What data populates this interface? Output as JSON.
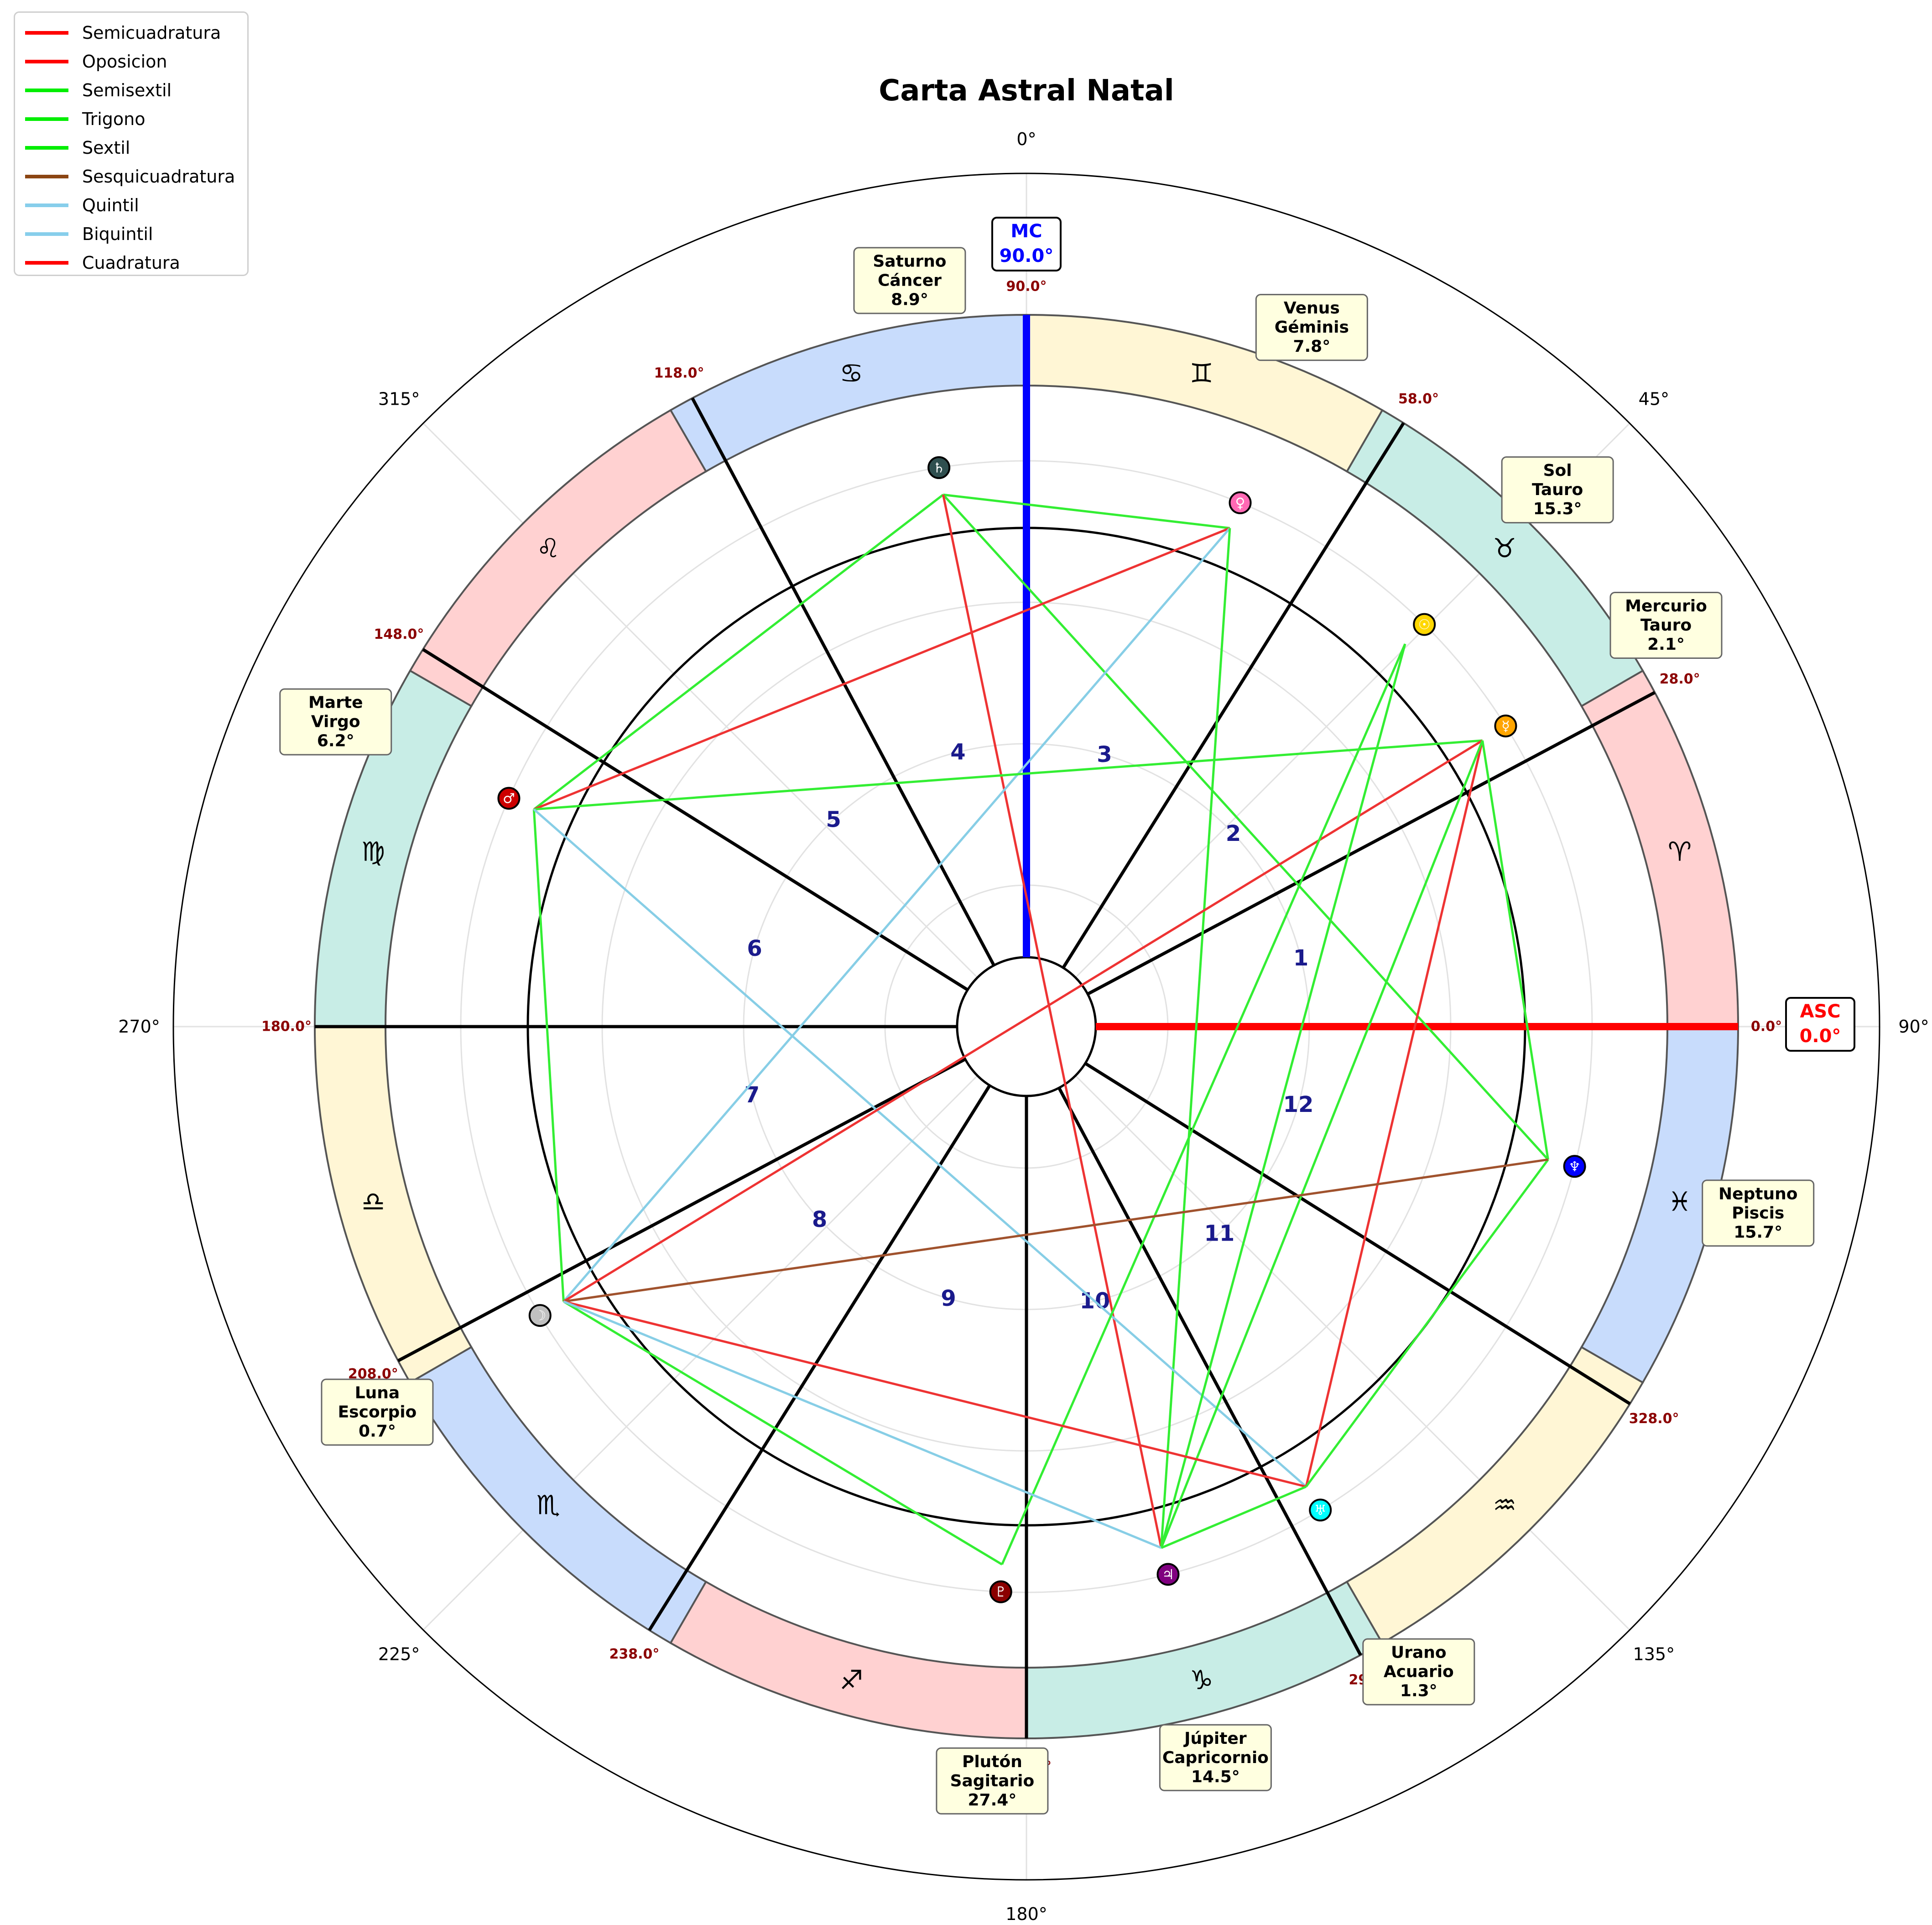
{
  "title": "Carta Astral Natal",
  "angle_labels": [
    "0°",
    "45°",
    "90°",
    "135°",
    "180°",
    "225°",
    "270°",
    "315°"
  ],
  "legend": [
    {
      "label": "Semicuadratura",
      "color": "#ff0000"
    },
    {
      "label": "Oposicion",
      "color": "#ff0000"
    },
    {
      "label": "Semisextil",
      "color": "#00ee00"
    },
    {
      "label": "Trigono",
      "color": "#00ee00"
    },
    {
      "label": "Sextil",
      "color": "#00ee00"
    },
    {
      "label": "Sesquicuadratura",
      "color": "#8b4513"
    },
    {
      "label": "Quintil",
      "color": "#87ceeb"
    },
    {
      "label": "Biquintil",
      "color": "#87ceeb"
    },
    {
      "label": "Cuadratura",
      "color": "#ff0000"
    }
  ],
  "signs": [
    {
      "glyph": "♈",
      "color": "#ffd1d1"
    },
    {
      "glyph": "♉",
      "color": "#c8ede6"
    },
    {
      "glyph": "♊",
      "color": "#fff6d5"
    },
    {
      "glyph": "♋",
      "color": "#c8dcfc"
    },
    {
      "glyph": "♌",
      "color": "#ffd1d1"
    },
    {
      "glyph": "♍",
      "color": "#c8ede6"
    },
    {
      "glyph": "♎",
      "color": "#fff6d5"
    },
    {
      "glyph": "♏",
      "color": "#c8dcfc"
    },
    {
      "glyph": "♐",
      "color": "#ffd1d1"
    },
    {
      "glyph": "♑",
      "color": "#c8ede6"
    },
    {
      "glyph": "♒",
      "color": "#fff6d5"
    },
    {
      "glyph": "♓",
      "color": "#c8dcfc"
    }
  ],
  "cusps": [
    {
      "deg": 0,
      "label": "0.0°"
    },
    {
      "deg": 28,
      "label": "28.0°"
    },
    {
      "deg": 58,
      "label": "58.0°"
    },
    {
      "deg": 90,
      "label": "90.0°"
    },
    {
      "deg": 118,
      "label": "118.0°"
    },
    {
      "deg": 148,
      "label": "148.0°"
    },
    {
      "deg": 180,
      "label": "180.0°"
    },
    {
      "deg": 208,
      "label": "208.0°"
    },
    {
      "deg": 238,
      "label": "238.0°"
    },
    {
      "deg": 270,
      "label": "270.0°"
    },
    {
      "deg": 298,
      "label": "298.0°"
    },
    {
      "deg": 328,
      "label": "328.0°"
    }
  ],
  "house_numbers": [
    "1",
    "2",
    "3",
    "4",
    "5",
    "6",
    "7",
    "8",
    "9",
    "10",
    "11",
    "12"
  ],
  "asc": {
    "label": "ASC",
    "value": "0.0°",
    "color": "#ff0000"
  },
  "mc": {
    "label": "MC",
    "value": "90.0°",
    "color": "#0000ff"
  },
  "planets": [
    {
      "name": "Sol",
      "sign": "Tauro",
      "deg": "15.3°",
      "lon": 45.3,
      "glyph": "☉",
      "color": "#ffd700"
    },
    {
      "name": "Luna",
      "sign": "Escorpio",
      "deg": "0.7°",
      "lon": 210.7,
      "glyph": "☽",
      "color": "#c0c0c0"
    },
    {
      "name": "Mercurio",
      "sign": "Tauro",
      "deg": "2.1°",
      "lon": 32.1,
      "glyph": "☿",
      "color": "#ffa500"
    },
    {
      "name": "Venus",
      "sign": "Géminis",
      "deg": "7.8°",
      "lon": 67.8,
      "glyph": "♀",
      "color": "#ff69b4"
    },
    {
      "name": "Marte",
      "sign": "Virgo",
      "deg": "6.2°",
      "lon": 156.2,
      "glyph": "♂",
      "color": "#cc0000"
    },
    {
      "name": "Júpiter",
      "sign": "Capricornio",
      "deg": "14.5°",
      "lon": 284.5,
      "glyph": "♃",
      "color": "#800080"
    },
    {
      "name": "Saturno",
      "sign": "Cáncer",
      "deg": "8.9°",
      "lon": 98.9,
      "glyph": "♄",
      "color": "#2f4f4f"
    },
    {
      "name": "Urano",
      "sign": "Acuario",
      "deg": "1.3°",
      "lon": 301.3,
      "glyph": "♅",
      "color": "#00ffff"
    },
    {
      "name": "Neptuno",
      "sign": "Piscis",
      "deg": "15.7°",
      "lon": 345.7,
      "glyph": "♆",
      "color": "#0000ff"
    },
    {
      "name": "Plutón",
      "sign": "Sagitario",
      "deg": "27.4°",
      "lon": 267.4,
      "glyph": "♇",
      "color": "#8b0000"
    }
  ],
  "aspects": [
    {
      "from": "Saturno",
      "to": "Venus",
      "type": "Semisextil"
    },
    {
      "from": "Saturno",
      "to": "Marte",
      "type": "Sextil"
    },
    {
      "from": "Saturno",
      "to": "Neptuno",
      "type": "Trigono"
    },
    {
      "from": "Saturno",
      "to": "Júpiter",
      "type": "Oposicion"
    },
    {
      "from": "Venus",
      "to": "Marte",
      "type": "Cuadratura"
    },
    {
      "from": "Venus",
      "to": "Luna",
      "type": "Quintil"
    },
    {
      "from": "Venus",
      "to": "Júpiter",
      "type": "Trigono"
    },
    {
      "from": "Marte",
      "to": "Mercurio",
      "type": "Trigono"
    },
    {
      "from": "Marte",
      "to": "Luna",
      "type": "Semisextil"
    },
    {
      "from": "Marte",
      "to": "Urano",
      "type": "Biquintil"
    },
    {
      "from": "Mercurio",
      "to": "Luna",
      "type": "Oposicion"
    },
    {
      "from": "Mercurio",
      "to": "Urano",
      "type": "Cuadratura"
    },
    {
      "from": "Mercurio",
      "to": "Neptuno",
      "type": "Semisextil"
    },
    {
      "from": "Mercurio",
      "to": "Júpiter",
      "type": "Trigono"
    },
    {
      "from": "Sol",
      "to": "Plutón",
      "type": "Trigono"
    },
    {
      "from": "Sol",
      "to": "Júpiter",
      "type": "Trigono"
    },
    {
      "from": "Neptuno",
      "to": "Urano",
      "type": "Sextil"
    },
    {
      "from": "Neptuno",
      "to": "Luna",
      "type": "Sesquicuadratura"
    },
    {
      "from": "Luna",
      "to": "Plutón",
      "type": "Semisextil"
    },
    {
      "from": "Luna",
      "to": "Urano",
      "type": "Cuadratura"
    },
    {
      "from": "Luna",
      "to": "Júpiter",
      "type": "Quintil"
    },
    {
      "from": "Urano",
      "to": "Júpiter",
      "type": "Semisextil"
    }
  ]
}
